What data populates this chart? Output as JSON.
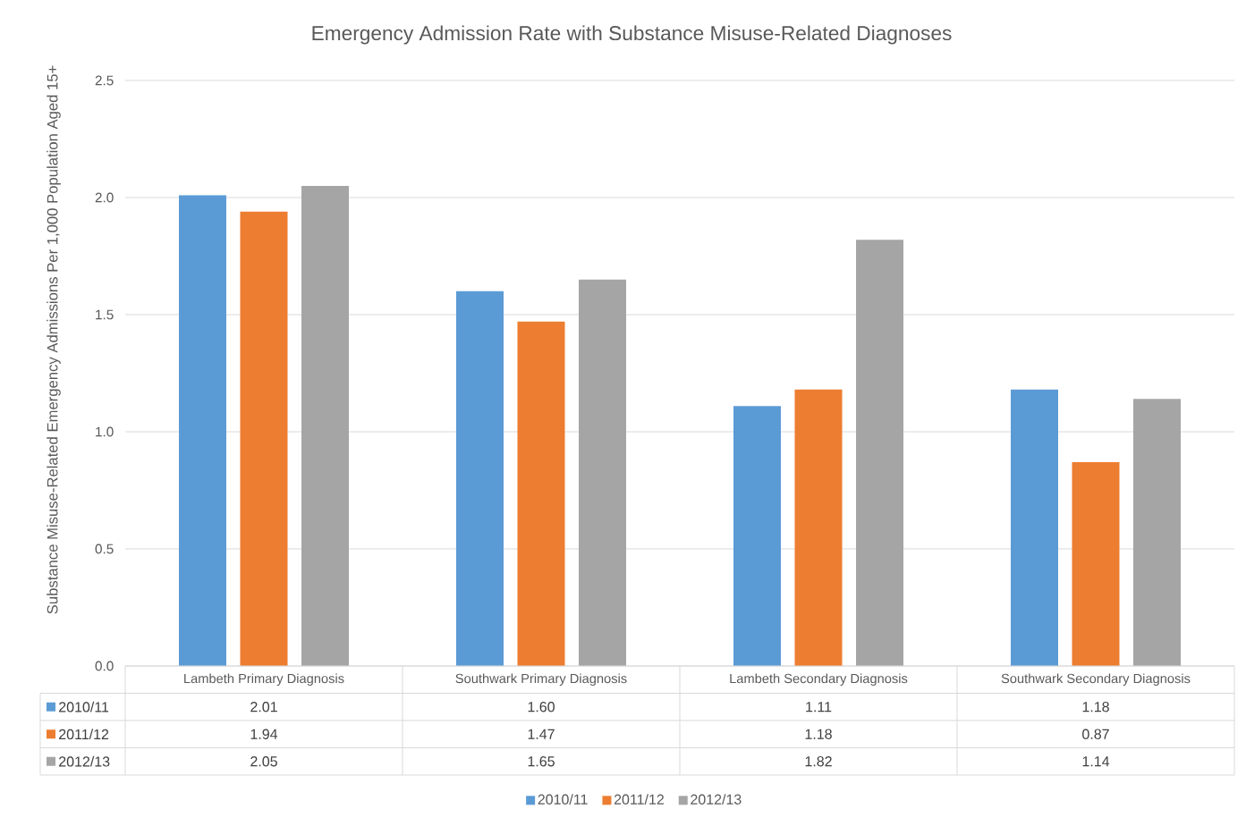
{
  "chart_data": {
    "type": "bar",
    "title": "Emergency Admission Rate with Substance Misuse-Related Diagnoses",
    "ylabel": "Substance Misuse-Related Emergency Admissions Per 1,000 Population Aged 15+",
    "categories": [
      "Lambeth Primary Diagnosis",
      "Southwark Primary Diagnosis",
      "Lambeth Secondary Diagnosis",
      "Southwark Secondary Diagnosis"
    ],
    "series": [
      {
        "name": "2010/11",
        "color": "#5b9bd5",
        "values": [
          2.01,
          1.6,
          1.11,
          1.18
        ],
        "value_labels": [
          "2.01",
          "1.60",
          "1.11",
          "1.18"
        ]
      },
      {
        "name": "2011/12",
        "color": "#ed7d31",
        "values": [
          1.94,
          1.47,
          1.18,
          0.87
        ],
        "value_labels": [
          "1.94",
          "1.47",
          "1.18",
          "0.87"
        ]
      },
      {
        "name": "2012/13",
        "color": "#a5a5a5",
        "values": [
          2.05,
          1.65,
          1.82,
          1.14
        ],
        "value_labels": [
          "2.05",
          "1.65",
          "1.82",
          "1.14"
        ]
      }
    ],
    "ylim": [
      0,
      2.5
    ],
    "yticks": [
      {
        "value": 0,
        "label": "0.0"
      },
      {
        "value": 0.5,
        "label": "0.5"
      },
      {
        "value": 1,
        "label": "1.0"
      },
      {
        "value": 1.5,
        "label": "1.5"
      },
      {
        "value": 2,
        "label": "2.0"
      },
      {
        "value": 2.5,
        "label": "2.5"
      }
    ],
    "grid": "y",
    "legend": "bottom"
  }
}
